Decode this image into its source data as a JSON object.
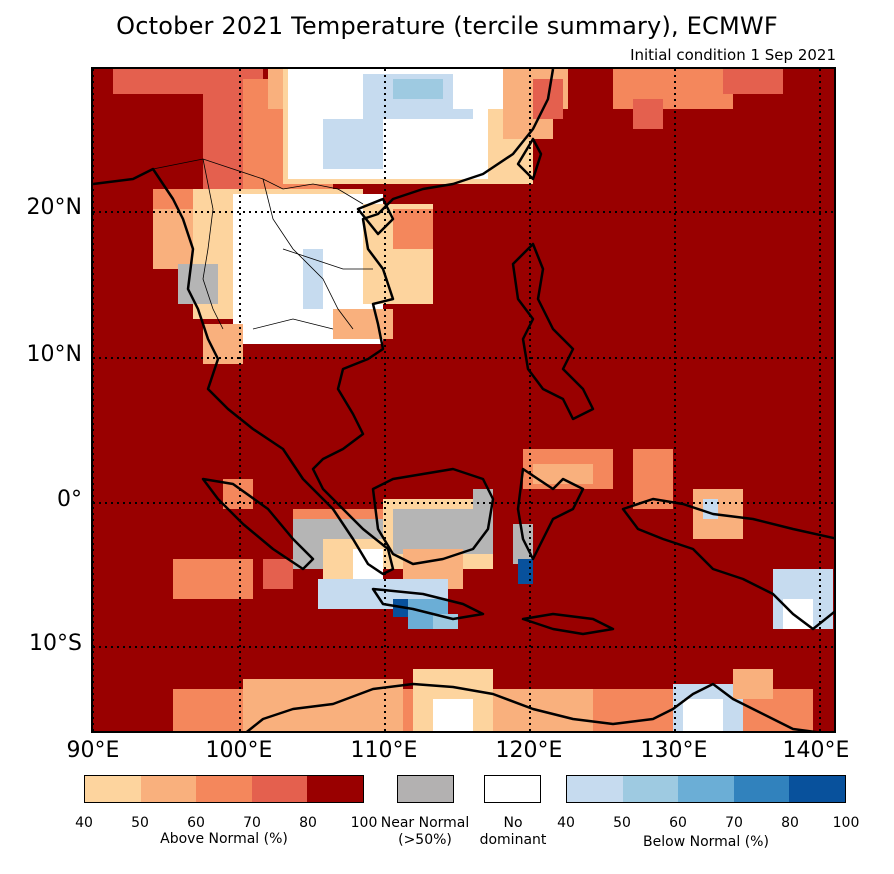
{
  "title": "October 2021 Temperature (tercile summary), ECMWF",
  "subtitle": "Initial condition 1 Sep 2021",
  "map": {
    "lat_labels": [
      "20°N",
      "10°N",
      "0°",
      "10°S"
    ],
    "lon_labels": [
      "90°E",
      "100°E",
      "110°E",
      "120°E",
      "130°E",
      "140°E"
    ],
    "colors": {
      "ocean_dominant": "#990000",
      "above_80": "#990000",
      "above_70": "#e4604e",
      "above_60": "#f4875c",
      "above_50": "#f9b07d",
      "above_40": "#fdd49e",
      "near_normal": "#b5b5b5",
      "no_dominant": "#ffffff",
      "below_40": "#c6dbef",
      "below_50": "#9ecae1",
      "below_60": "#6baed6",
      "below_70": "#3182bd",
      "below_80": "#08519c"
    }
  },
  "legend": {
    "above": {
      "colors": [
        "#fdd49e",
        "#f9b07d",
        "#f4875c",
        "#e4604e",
        "#990000"
      ],
      "ticks": [
        "40",
        "50",
        "60",
        "70",
        "80",
        "100"
      ],
      "label": "Above Normal (%)"
    },
    "near_normal": {
      "color": "#b3b1b1",
      "label_line1": "Near Normal",
      "label_line2": "(>50%)"
    },
    "no_dominant": {
      "color": "#ffffff",
      "label_line1": "No",
      "label_line2": "dominant"
    },
    "below": {
      "colors": [
        "#c6dbef",
        "#9ecae1",
        "#6baed6",
        "#3182bd",
        "#08519c"
      ],
      "ticks": [
        "40",
        "50",
        "60",
        "70",
        "80",
        "100"
      ],
      "label": "Below Normal (%)"
    }
  }
}
